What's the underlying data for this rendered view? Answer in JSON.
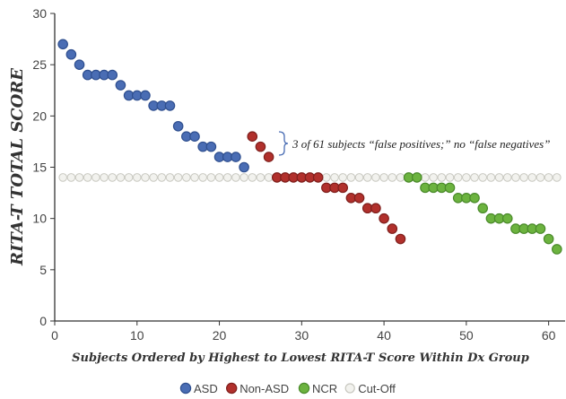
{
  "chart_data": {
    "type": "scatter",
    "xlabel": "Subjects Ordered by Highest to Lowest RITA-T Score Within Dx Group",
    "ylabel": "RITA-T TOTAL SCORE",
    "xlim": [
      0,
      62
    ],
    "ylim": [
      0,
      30
    ],
    "x_ticks": [
      0,
      10,
      20,
      30,
      40,
      50,
      60
    ],
    "y_ticks": [
      0,
      5,
      10,
      15,
      20,
      25,
      30
    ],
    "grid": false,
    "legend_position": "bottom",
    "annotation": "3 of 61 subjects “false positives;” no “false negatives”",
    "series": [
      {
        "name": "ASD",
        "fill": "#4a6db4",
        "stroke": "#2f4f8f",
        "x": [
          1,
          2,
          3,
          4,
          5,
          6,
          7,
          8,
          9,
          10,
          11,
          12,
          13,
          14,
          15,
          16,
          17,
          18,
          19,
          20,
          21,
          22,
          23
        ],
        "y": [
          27,
          26,
          25,
          24,
          24,
          24,
          24,
          23,
          22,
          22,
          22,
          21,
          21,
          21,
          19,
          18,
          18,
          17,
          17,
          16,
          16,
          16,
          15
        ]
      },
      {
        "name": "Non-ASD",
        "fill": "#b1302c",
        "stroke": "#7f1f1c",
        "x": [
          24,
          25,
          26,
          27,
          28,
          29,
          30,
          31,
          32,
          33,
          34,
          35,
          36,
          37,
          38,
          39,
          40,
          41,
          42
        ],
        "y": [
          18,
          17,
          16,
          14,
          14,
          14,
          14,
          14,
          14,
          13,
          13,
          13,
          12,
          12,
          11,
          11,
          10,
          9,
          8
        ]
      },
      {
        "name": "NCR",
        "fill": "#6cb33f",
        "stroke": "#4a8a2a",
        "x": [
          43,
          44,
          45,
          46,
          47,
          48,
          49,
          50,
          51,
          52,
          53,
          54,
          55,
          56,
          57,
          58,
          59,
          60,
          61
        ],
        "y": [
          14,
          14,
          13,
          13,
          13,
          13,
          12,
          12,
          12,
          11,
          10,
          10,
          10,
          9,
          9,
          9,
          9,
          8,
          7
        ]
      },
      {
        "name": "Cut-Off",
        "fill": "#f2f2ee",
        "stroke": "#c8c8c0",
        "x": [
          1,
          2,
          3,
          4,
          5,
          6,
          7,
          8,
          9,
          10,
          11,
          12,
          13,
          14,
          15,
          16,
          17,
          18,
          19,
          20,
          21,
          22,
          23,
          24,
          25,
          26,
          27,
          28,
          29,
          30,
          31,
          32,
          33,
          34,
          35,
          36,
          37,
          38,
          39,
          40,
          41,
          42,
          43,
          44,
          45,
          46,
          47,
          48,
          49,
          50,
          51,
          52,
          53,
          54,
          55,
          56,
          57,
          58,
          59,
          60,
          61
        ],
        "y": [
          14,
          14,
          14,
          14,
          14,
          14,
          14,
          14,
          14,
          14,
          14,
          14,
          14,
          14,
          14,
          14,
          14,
          14,
          14,
          14,
          14,
          14,
          14,
          14,
          14,
          14,
          14,
          14,
          14,
          14,
          14,
          14,
          14,
          14,
          14,
          14,
          14,
          14,
          14,
          14,
          14,
          14,
          14,
          14,
          14,
          14,
          14,
          14,
          14,
          14,
          14,
          14,
          14,
          14,
          14,
          14,
          14,
          14,
          14,
          14,
          14
        ]
      }
    ]
  }
}
